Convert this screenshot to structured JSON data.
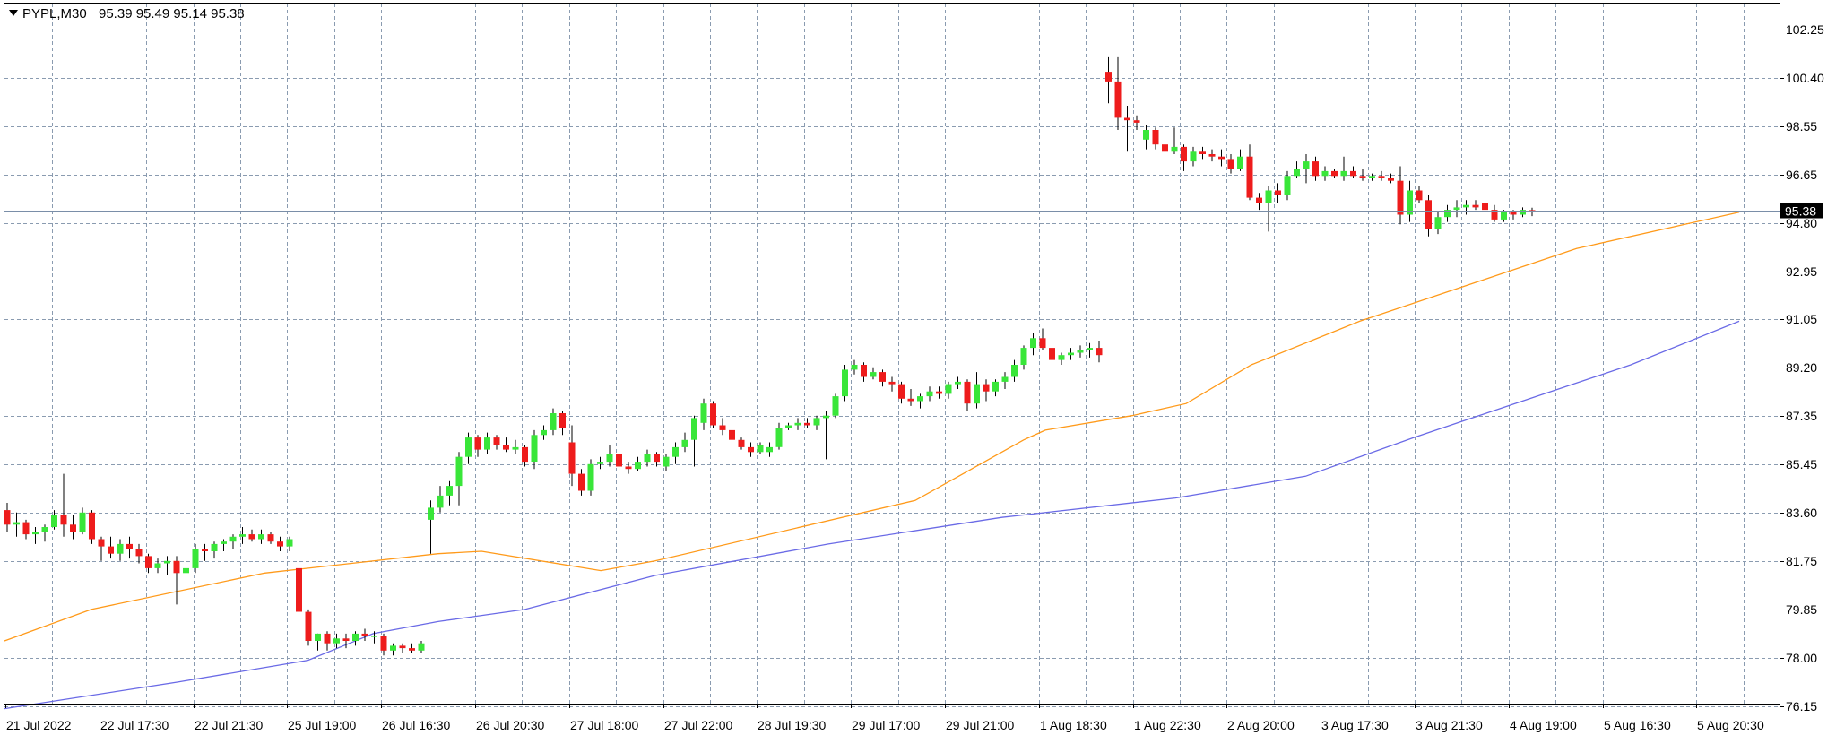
{
  "header": {
    "symbol": "PYPL,M30",
    "ohlc": "95.39 95.49 95.14 95.38"
  },
  "current_price_label": "95.38",
  "colors": {
    "background": "#ffffff",
    "grid": "#8a9bb0",
    "frame": "#000000",
    "bull": "#39e639",
    "bear": "#ee1c1c",
    "wick": "#000000",
    "ma_fast": "#ff9a1a",
    "ma_slow": "#6a6ae6",
    "price_line": "#7a8ea8",
    "price_tag_bg": "#000000"
  },
  "chart_data": {
    "type": "candlestick",
    "ylim": [
      75.6,
      103.4
    ],
    "grid": true,
    "y_ticks": [
      "102.25",
      "100.40",
      "98.55",
      "96.65",
      "94.80",
      "92.95",
      "91.05",
      "89.20",
      "87.35",
      "85.45",
      "83.60",
      "81.75",
      "79.85",
      "78.00",
      "76.15"
    ],
    "x_ticks": [
      "21 Jul 2022",
      "22 Jul 17:30",
      "22 Jul 21:30",
      "25 Jul 19:00",
      "26 Jul 16:30",
      "26 Jul 20:30",
      "27 Jul 18:00",
      "27 Jul 22:00",
      "28 Jul 19:30",
      "29 Jul 17:00",
      "29 Jul 21:00",
      "1 Aug 18:30",
      "1 Aug 22:30",
      "2 Aug 20:00",
      "3 Aug 17:30",
      "3 Aug 21:30",
      "4 Aug 19:00",
      "5 Aug 16:30",
      "5 Aug 20:30"
    ],
    "ohlc": [
      [
        83.0,
        83.3,
        82.1,
        82.4
      ],
      [
        82.4,
        82.9,
        81.9,
        82.5
      ],
      [
        82.5,
        82.6,
        81.8,
        82.0
      ],
      [
        82.0,
        82.3,
        81.6,
        82.1
      ],
      [
        82.1,
        82.4,
        81.7,
        82.3
      ],
      [
        82.3,
        83.0,
        82.2,
        82.8
      ],
      [
        82.8,
        84.5,
        81.9,
        82.4
      ],
      [
        82.4,
        82.8,
        81.8,
        82.1
      ],
      [
        82.1,
        83.1,
        82.0,
        82.9
      ],
      [
        82.9,
        83.0,
        81.6,
        81.8
      ],
      [
        81.8,
        81.9,
        80.9,
        81.5
      ],
      [
        81.5,
        81.9,
        81.0,
        81.2
      ],
      [
        81.2,
        81.8,
        80.9,
        81.6
      ],
      [
        81.6,
        81.9,
        81.0,
        81.4
      ],
      [
        81.4,
        81.6,
        80.8,
        81.1
      ],
      [
        81.1,
        81.2,
        80.4,
        80.6
      ],
      [
        80.6,
        81.0,
        80.4,
        80.8
      ],
      [
        80.8,
        81.1,
        80.3,
        80.9
      ],
      [
        80.9,
        81.1,
        79.1,
        80.4
      ],
      [
        80.4,
        80.8,
        80.2,
        80.6
      ],
      [
        80.6,
        81.6,
        80.4,
        81.4
      ],
      [
        81.4,
        81.6,
        80.9,
        81.3
      ],
      [
        81.3,
        81.7,
        81.0,
        81.6
      ],
      [
        81.6,
        81.8,
        81.3,
        81.7
      ],
      [
        81.7,
        82.0,
        81.4,
        81.9
      ],
      [
        81.9,
        82.3,
        81.6,
        82.0
      ],
      [
        82.0,
        82.2,
        81.7,
        81.8
      ],
      [
        81.8,
        82.2,
        81.6,
        82.0
      ],
      [
        82.0,
        82.1,
        81.6,
        81.7
      ],
      [
        81.7,
        81.9,
        81.3,
        81.5
      ],
      [
        81.5,
        81.9,
        81.3,
        81.8
      ],
      [
        80.6,
        80.6,
        78.2,
        78.8
      ],
      [
        78.8,
        78.9,
        77.4,
        77.6
      ],
      [
        77.6,
        77.9,
        77.2,
        77.9
      ],
      [
        77.9,
        78.0,
        77.2,
        77.5
      ],
      [
        77.5,
        77.9,
        77.3,
        77.7
      ],
      [
        77.7,
        77.9,
        77.3,
        77.6
      ],
      [
        77.6,
        78.0,
        77.4,
        77.9
      ],
      [
        77.9,
        78.1,
        77.6,
        77.8
      ],
      [
        77.8,
        78.0,
        77.5,
        77.8
      ],
      [
        77.8,
        77.9,
        77.0,
        77.2
      ],
      [
        77.2,
        77.5,
        77.0,
        77.4
      ],
      [
        77.4,
        77.5,
        77.1,
        77.3
      ],
      [
        77.3,
        77.5,
        77.1,
        77.2
      ],
      [
        77.2,
        77.6,
        77.1,
        77.5
      ],
      [
        82.6,
        83.4,
        81.2,
        83.1
      ],
      [
        83.1,
        84.0,
        82.9,
        83.6
      ],
      [
        83.6,
        84.2,
        83.2,
        84.0
      ],
      [
        84.0,
        85.4,
        83.2,
        85.2
      ],
      [
        85.2,
        86.2,
        84.9,
        86.0
      ],
      [
        86.0,
        86.1,
        85.2,
        85.5
      ],
      [
        85.5,
        86.2,
        85.3,
        86.0
      ],
      [
        86.0,
        86.1,
        85.5,
        85.7
      ],
      [
        85.7,
        86.0,
        85.4,
        85.5
      ],
      [
        85.5,
        85.9,
        85.3,
        85.6
      ],
      [
        85.6,
        85.7,
        84.8,
        85.0
      ],
      [
        85.0,
        86.3,
        84.7,
        86.1
      ],
      [
        86.1,
        86.5,
        85.9,
        86.3
      ],
      [
        86.3,
        87.2,
        86.1,
        87.0
      ],
      [
        87.0,
        87.1,
        86.1,
        86.4
      ],
      [
        85.8,
        86.5,
        84.0,
        84.5
      ],
      [
        84.5,
        84.7,
        83.6,
        83.8
      ],
      [
        83.8,
        85.1,
        83.6,
        84.9
      ],
      [
        84.9,
        85.2,
        84.7,
        85.0
      ],
      [
        85.0,
        85.7,
        84.8,
        85.3
      ],
      [
        85.3,
        85.4,
        84.6,
        84.8
      ],
      [
        84.8,
        85.0,
        84.5,
        84.7
      ],
      [
        84.7,
        85.2,
        84.6,
        85.0
      ],
      [
        85.0,
        85.5,
        84.8,
        85.3
      ],
      [
        85.3,
        85.4,
        84.8,
        85.0
      ],
      [
        84.8,
        85.3,
        84.6,
        85.2
      ],
      [
        85.2,
        85.8,
        84.9,
        85.6
      ],
      [
        85.6,
        86.2,
        85.4,
        85.9
      ],
      [
        85.9,
        86.9,
        84.8,
        86.8
      ],
      [
        86.6,
        87.6,
        86.3,
        87.4
      ],
      [
        87.4,
        87.5,
        86.4,
        86.5
      ],
      [
        86.5,
        86.8,
        86.1,
        86.3
      ],
      [
        86.3,
        86.4,
        85.8,
        85.9
      ],
      [
        85.9,
        86.0,
        85.5,
        85.6
      ],
      [
        85.6,
        85.8,
        85.2,
        85.4
      ],
      [
        85.4,
        85.8,
        85.3,
        85.7
      ],
      [
        85.4,
        85.8,
        85.2,
        85.6
      ],
      [
        85.6,
        86.6,
        85.5,
        86.4
      ],
      [
        86.4,
        86.6,
        86.3,
        86.5
      ],
      [
        86.5,
        86.8,
        86.3,
        86.6
      ],
      [
        86.6,
        86.8,
        86.4,
        86.5
      ],
      [
        86.5,
        86.9,
        86.3,
        86.8
      ],
      [
        86.8,
        87.1,
        85.1,
        86.9
      ],
      [
        86.9,
        87.8,
        86.8,
        87.7
      ],
      [
        87.7,
        89.0,
        87.5,
        88.8
      ],
      [
        88.8,
        89.2,
        88.6,
        89.0
      ],
      [
        89.0,
        89.1,
        88.3,
        88.5
      ],
      [
        88.5,
        88.9,
        88.4,
        88.7
      ],
      [
        88.7,
        88.8,
        88.1,
        88.3
      ],
      [
        88.3,
        88.5,
        87.9,
        88.2
      ],
      [
        88.2,
        88.3,
        87.4,
        87.6
      ],
      [
        87.6,
        88.0,
        87.3,
        87.5
      ],
      [
        87.5,
        87.8,
        87.2,
        87.7
      ],
      [
        87.7,
        88.1,
        87.5,
        87.9
      ],
      [
        87.9,
        88.1,
        87.6,
        87.8
      ],
      [
        87.8,
        88.3,
        87.6,
        88.2
      ],
      [
        88.2,
        88.5,
        88.0,
        88.3
      ],
      [
        88.3,
        88.4,
        87.1,
        87.4
      ],
      [
        87.4,
        88.7,
        87.2,
        88.2
      ],
      [
        88.2,
        88.4,
        87.5,
        87.9
      ],
      [
        87.9,
        88.4,
        87.7,
        88.3
      ],
      [
        88.3,
        88.7,
        88.0,
        88.5
      ],
      [
        88.5,
        89.2,
        88.3,
        89.0
      ],
      [
        89.0,
        89.8,
        88.8,
        89.7
      ],
      [
        89.7,
        90.3,
        89.4,
        90.1
      ],
      [
        90.1,
        90.5,
        89.6,
        89.7
      ],
      [
        89.7,
        89.8,
        88.9,
        89.2
      ],
      [
        89.2,
        89.5,
        89.0,
        89.4
      ],
      [
        89.4,
        89.7,
        89.2,
        89.5
      ],
      [
        89.5,
        89.8,
        89.3,
        89.6
      ],
      [
        89.6,
        89.9,
        89.3,
        89.7
      ],
      [
        89.7,
        90.0,
        89.1,
        89.4
      ],
      [
        101.1,
        101.7,
        99.8,
        100.7
      ],
      [
        100.7,
        101.7,
        98.7,
        99.2
      ],
      [
        99.2,
        99.7,
        97.8,
        99.1
      ],
      [
        99.1,
        99.3,
        98.7,
        99.0
      ],
      [
        98.3,
        98.9,
        97.9,
        98.7
      ],
      [
        98.7,
        98.8,
        97.9,
        98.1
      ],
      [
        98.1,
        98.4,
        97.6,
        97.8
      ],
      [
        97.8,
        98.8,
        97.7,
        98.0
      ],
      [
        98.0,
        98.1,
        97.0,
        97.4
      ],
      [
        97.4,
        98.0,
        97.2,
        97.8
      ],
      [
        97.8,
        98.0,
        97.5,
        97.7
      ],
      [
        97.7,
        97.9,
        97.4,
        97.6
      ],
      [
        97.6,
        97.9,
        97.2,
        97.5
      ],
      [
        97.5,
        97.7,
        96.9,
        97.1
      ],
      [
        97.1,
        97.9,
        97.0,
        97.6
      ],
      [
        97.6,
        98.1,
        95.8,
        95.9
      ],
      [
        95.9,
        96.1,
        95.4,
        95.7
      ],
      [
        95.7,
        96.4,
        94.5,
        96.2
      ],
      [
        96.2,
        96.5,
        95.7,
        96.0
      ],
      [
        96.0,
        97.0,
        95.8,
        96.8
      ],
      [
        96.8,
        97.4,
        96.7,
        97.1
      ],
      [
        97.1,
        97.7,
        96.5,
        97.4
      ],
      [
        97.4,
        97.6,
        96.6,
        96.8
      ],
      [
        96.8,
        97.2,
        96.6,
        97.0
      ],
      [
        97.0,
        97.1,
        96.7,
        96.8
      ],
      [
        96.8,
        97.6,
        96.6,
        97.0
      ],
      [
        97.0,
        97.2,
        96.7,
        96.8
      ],
      [
        96.8,
        97.1,
        96.6,
        96.7
      ],
      [
        96.7,
        96.9,
        96.6,
        96.8
      ],
      [
        96.8,
        97.0,
        96.6,
        96.7
      ],
      [
        96.7,
        96.9,
        96.5,
        96.6
      ],
      [
        96.6,
        97.2,
        94.8,
        95.2
      ],
      [
        95.2,
        96.6,
        94.9,
        96.2
      ],
      [
        96.2,
        96.4,
        95.7,
        95.8
      ],
      [
        95.8,
        96.0,
        94.3,
        94.6
      ],
      [
        94.6,
        95.3,
        94.4,
        95.1
      ],
      [
        95.1,
        95.6,
        94.9,
        95.4
      ],
      [
        95.4,
        95.8,
        95.1,
        95.5
      ],
      [
        95.5,
        95.8,
        95.2,
        95.6
      ],
      [
        95.6,
        95.8,
        95.4,
        95.5
      ],
      [
        95.7,
        95.9,
        95.2,
        95.4
      ],
      [
        95.4,
        95.6,
        94.9,
        95.0
      ],
      [
        95.0,
        95.4,
        94.9,
        95.3
      ],
      [
        95.3,
        95.4,
        95.0,
        95.2
      ],
      [
        95.2,
        95.5,
        95.1,
        95.4
      ],
      [
        95.39,
        95.49,
        95.14,
        95.38
      ]
    ],
    "ma_fast": [
      [
        0,
        77.6
      ],
      [
        40,
        78.9
      ],
      [
        120,
        80.4
      ],
      [
        200,
        81.2
      ],
      [
        220,
        81.3
      ],
      [
        275,
        80.5
      ],
      [
        300,
        80.9
      ],
      [
        420,
        83.4
      ],
      [
        440,
        84.4
      ],
      [
        470,
        85.9
      ],
      [
        480,
        86.3
      ],
      [
        520,
        86.9
      ],
      [
        545,
        87.4
      ],
      [
        575,
        89.0
      ],
      [
        625,
        90.8
      ],
      [
        675,
        92.3
      ],
      [
        725,
        93.8
      ],
      [
        775,
        94.8
      ],
      [
        800,
        95.3
      ]
    ],
    "ma_slow": [
      [
        0,
        74.8
      ],
      [
        80,
        75.9
      ],
      [
        140,
        76.8
      ],
      [
        170,
        77.9
      ],
      [
        200,
        78.4
      ],
      [
        240,
        78.9
      ],
      [
        300,
        80.3
      ],
      [
        380,
        81.6
      ],
      [
        460,
        82.7
      ],
      [
        540,
        83.5
      ],
      [
        600,
        84.4
      ],
      [
        650,
        86.0
      ],
      [
        700,
        87.5
      ],
      [
        750,
        89.0
      ],
      [
        800,
        90.8
      ]
    ]
  }
}
